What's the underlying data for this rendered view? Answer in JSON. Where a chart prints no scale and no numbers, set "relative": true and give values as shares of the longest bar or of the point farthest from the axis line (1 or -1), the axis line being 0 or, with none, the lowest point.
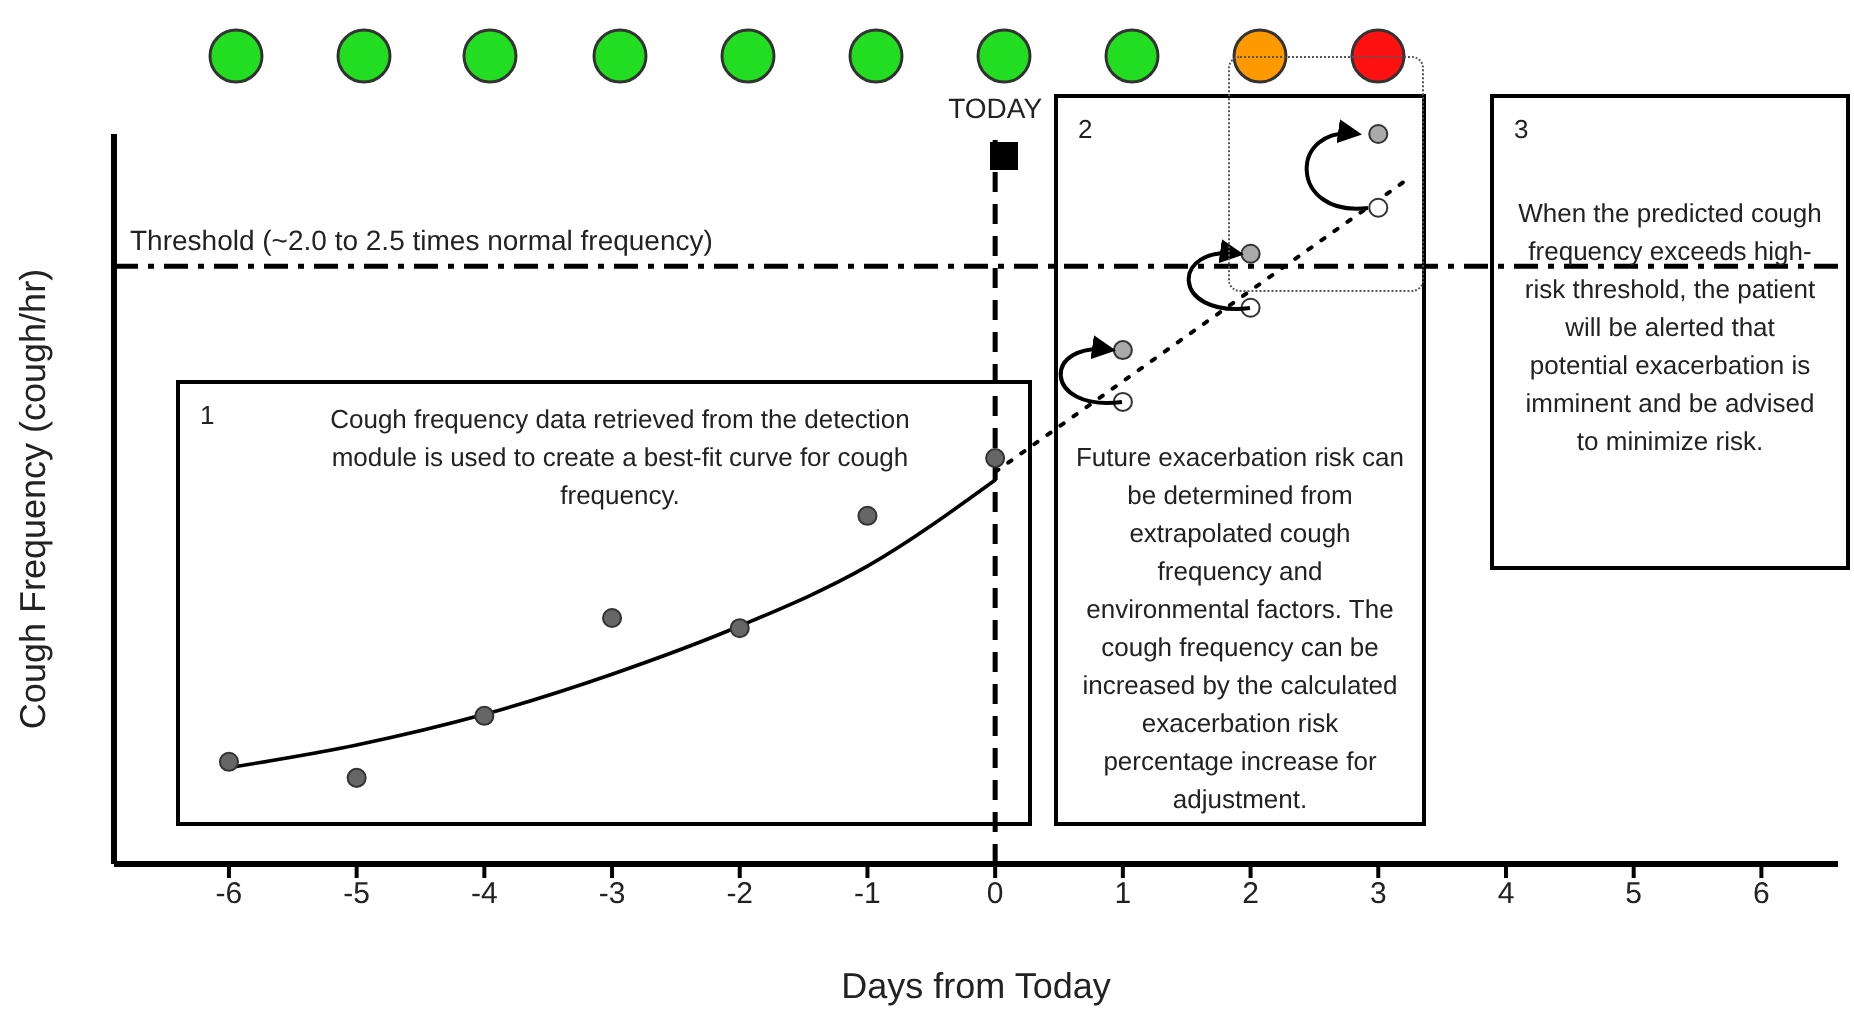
{
  "chart_data": {
    "type": "scatter",
    "xlabel": "Days from Today",
    "ylabel": "Cough Frequency (cough/hr)",
    "relative": true,
    "xlim": [
      -6.9,
      6.6
    ],
    "xticks": [
      -6,
      -5,
      -4,
      -3,
      -2,
      -1,
      0,
      1,
      2,
      3,
      4,
      5,
      6
    ],
    "grid": false,
    "legend": false,
    "marker": "circle",
    "series": [
      {
        "type": "scatter",
        "color": "#666666",
        "x": [
          -6,
          -5,
          -4,
          -3,
          -2,
          -1,
          0
        ],
        "values": [
          0.14,
          0.118,
          0.203,
          0.337,
          0.323,
          0.477,
          0.556
        ]
      },
      {
        "type": "line",
        "color": "#000000",
        "line_style": "solid",
        "marker": "none",
        "x": [
          -6,
          -5,
          -4,
          -3,
          -2,
          -1,
          0
        ],
        "values": [
          0.132,
          0.163,
          0.205,
          0.26,
          0.326,
          0.408,
          0.526
        ]
      },
      {
        "type": "line",
        "color": "#000000",
        "line_style": "dotted",
        "marker": "none",
        "x": [
          0,
          3.22
        ],
        "values": [
          0.537,
          0.937
        ]
      },
      {
        "type": "scatter",
        "color": "#ffffff",
        "x": [
          1,
          2,
          3
        ],
        "values": [
          0.633,
          0.762,
          0.899
        ]
      },
      {
        "type": "scatter",
        "color": "#aaaaaa",
        "x": [
          1,
          2,
          3
        ],
        "values": [
          0.704,
          0.836,
          1
        ]
      }
    ],
    "ref_lines": [
      {
        "axis": "y",
        "value": 0.819,
        "label": "Threshold (~2.0 to 2.5 times normal frequency)",
        "line_style": "dashdot",
        "color": "#000000"
      },
      {
        "axis": "x",
        "value": 0,
        "label": "TODAY",
        "line_style": "dashed",
        "color": "#000000"
      }
    ],
    "annotations": [
      "1",
      "Cough frequency data retrieved from the detection module is used to create a best-fit curve for cough frequency.",
      "2",
      "Future exacerbation risk can be determined from extrapolated cough frequency and environmental factors. The cough frequency can be increased by the calculated exacerbation risk percentage increase for adjustment.",
      "3",
      "When the predicted cough frequency exceeds high-risk threshold, the patient will be alerted that potential exacerbation is imminent and be advised to minimize risk."
    ]
  }
}
